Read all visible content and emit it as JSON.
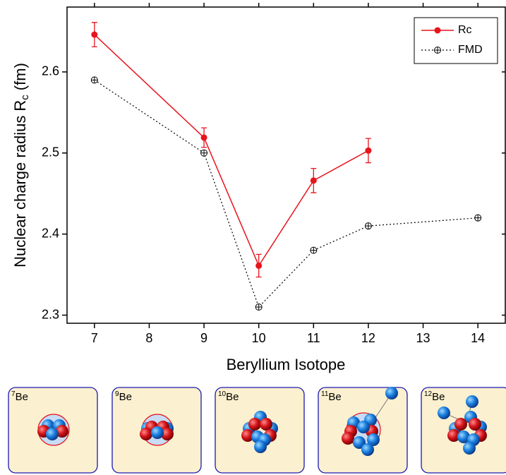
{
  "chart_data": {
    "type": "line",
    "xlabel": "Beryllium Isotope",
    "ylabel": {
      "main": "Nuclear charge radius  R",
      "sub": "c",
      "unit": "(fm)"
    },
    "xlim": [
      6.5,
      14.5
    ],
    "xticks": [
      7,
      8,
      9,
      10,
      11,
      12,
      13,
      14
    ],
    "ylim": [
      2.29,
      2.68
    ],
    "yticks": [
      2.3,
      2.4,
      2.5,
      2.6
    ],
    "legend": "upper right",
    "series": [
      {
        "name": "Rc",
        "color": "#e8141c",
        "style": "solid",
        "marker": "filled-circle",
        "x": [
          7,
          9,
          10,
          11,
          12
        ],
        "values": [
          2.646,
          2.519,
          2.361,
          2.466,
          2.503
        ],
        "errors": [
          0.015,
          0.012,
          0.014,
          0.015,
          0.015
        ]
      },
      {
        "name": "FMD",
        "color": "#000000",
        "style": "dotted",
        "marker": "crossed-circle",
        "x": [
          7,
          9,
          10,
          11,
          12,
          14
        ],
        "values": [
          2.59,
          2.5,
          2.31,
          2.38,
          2.41,
          2.42
        ]
      }
    ]
  },
  "illustrations": [
    {
      "mass": "7",
      "element": "Be"
    },
    {
      "mass": "9",
      "element": "Be"
    },
    {
      "mass": "10",
      "element": "Be"
    },
    {
      "mass": "11",
      "element": "Be"
    },
    {
      "mass": "12",
      "element": "Be"
    }
  ]
}
